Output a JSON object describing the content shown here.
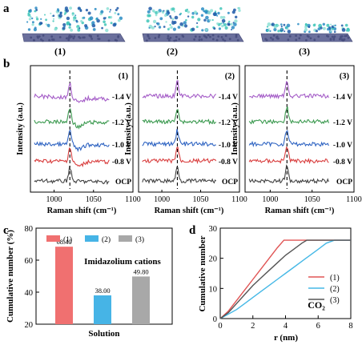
{
  "panel_labels": {
    "a": "a",
    "b": "b",
    "c": "c",
    "d": "d"
  },
  "panel_a": {
    "labels": [
      "(1)",
      "(2)",
      "(3)"
    ]
  },
  "panel_b": {
    "ylabel": "Intensity (a.u.)",
    "xlabel": "Raman shift (cm⁻¹)",
    "xticks": [
      "1000",
      "1050",
      "1100"
    ],
    "peak_position": 1020,
    "potentials": [
      "OCP",
      "-0.8 V",
      "-1.0 V",
      "-1.2 V",
      "-1.4 V"
    ],
    "potential_colors": [
      "#444444",
      "#d94040",
      "#2f64c2",
      "#3c9a50",
      "#a45cc7"
    ],
    "subplots": [
      {
        "label": "(1)"
      },
      {
        "label": "(2)"
      },
      {
        "label": "(3)"
      }
    ]
  },
  "chart_data": [
    {
      "type": "bar",
      "ylabel": "Cumulative number (%)",
      "xlabel": "Solution",
      "annotation": "Imidazolium cations",
      "categories": [
        "(1)",
        "(2)",
        "(3)"
      ],
      "values": [
        68.4,
        38.0,
        49.8
      ],
      "value_labels": [
        "68.40",
        "38.00",
        "49.80"
      ],
      "colors": [
        "#f07070",
        "#46b4e6",
        "#a8a8a8"
      ],
      "ylim": [
        20,
        80
      ],
      "yticks": [
        "20",
        "40",
        "60",
        "80"
      ],
      "legend": "top"
    },
    {
      "type": "line",
      "ylabel": "Cumulative number",
      "xlabel": "r (nm)",
      "annotation": "CO₂",
      "xlim": [
        0,
        8
      ],
      "ylim": [
        0,
        30
      ],
      "xticks": [
        "0",
        "2",
        "4",
        "6",
        "8"
      ],
      "yticks": [
        "0",
        "10",
        "20",
        "30"
      ],
      "legend": "right",
      "series": [
        {
          "name": "(1)",
          "color": "#e05555",
          "x": [
            0,
            0.5,
            1,
            1.5,
            2,
            2.5,
            3,
            3.5,
            3.9,
            4.2,
            8
          ],
          "y": [
            0,
            2.5,
            6,
            9.5,
            13,
            16.5,
            20,
            23.5,
            26,
            26,
            26
          ]
        },
        {
          "name": "(2)",
          "color": "#45b8e6",
          "x": [
            0,
            0.5,
            1,
            1.5,
            2,
            2.5,
            3,
            3.5,
            4,
            4.5,
            5,
            5.5,
            6,
            6.5,
            7,
            8
          ],
          "y": [
            0,
            1.5,
            3,
            5,
            7,
            9,
            11,
            13,
            15,
            17,
            19,
            21,
            23,
            25,
            26,
            26
          ]
        },
        {
          "name": "(3)",
          "color": "#555555",
          "x": [
            0,
            0.5,
            1,
            1.5,
            2,
            2.5,
            3,
            3.5,
            4,
            4.5,
            5,
            5.3,
            8
          ],
          "y": [
            0,
            2,
            5,
            8,
            11,
            13.5,
            16,
            18.5,
            21,
            23,
            25,
            26,
            26
          ]
        }
      ]
    }
  ]
}
